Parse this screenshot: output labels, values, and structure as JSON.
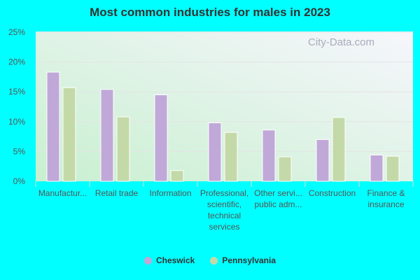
{
  "chart_data": {
    "type": "bar",
    "title": "Most common industries for males in 2023",
    "categories": [
      [
        "Manufactur..."
      ],
      [
        "Retail trade"
      ],
      [
        "Information"
      ],
      [
        "Professional,",
        "scientific,",
        "technical",
        "services"
      ],
      [
        "Other servi...",
        "public adm..."
      ],
      [
        "Construction"
      ],
      [
        "Finance &",
        "insurance"
      ]
    ],
    "series": [
      {
        "name": "Cheswick",
        "color": "#c0a8d8",
        "values": [
          18.3,
          15.4,
          14.5,
          9.8,
          8.6,
          7.0,
          4.4
        ]
      },
      {
        "name": "Pennsylvania",
        "color": "#c4d9a8",
        "values": [
          15.7,
          10.8,
          1.8,
          8.2,
          4.1,
          10.7,
          4.2
        ]
      }
    ],
    "yticks": [
      "0%",
      "5%",
      "10%",
      "15%",
      "20%",
      "25%"
    ],
    "ylim": [
      0,
      25
    ],
    "grid": true,
    "legend": "bottom"
  },
  "watermark": "City-Data.com"
}
